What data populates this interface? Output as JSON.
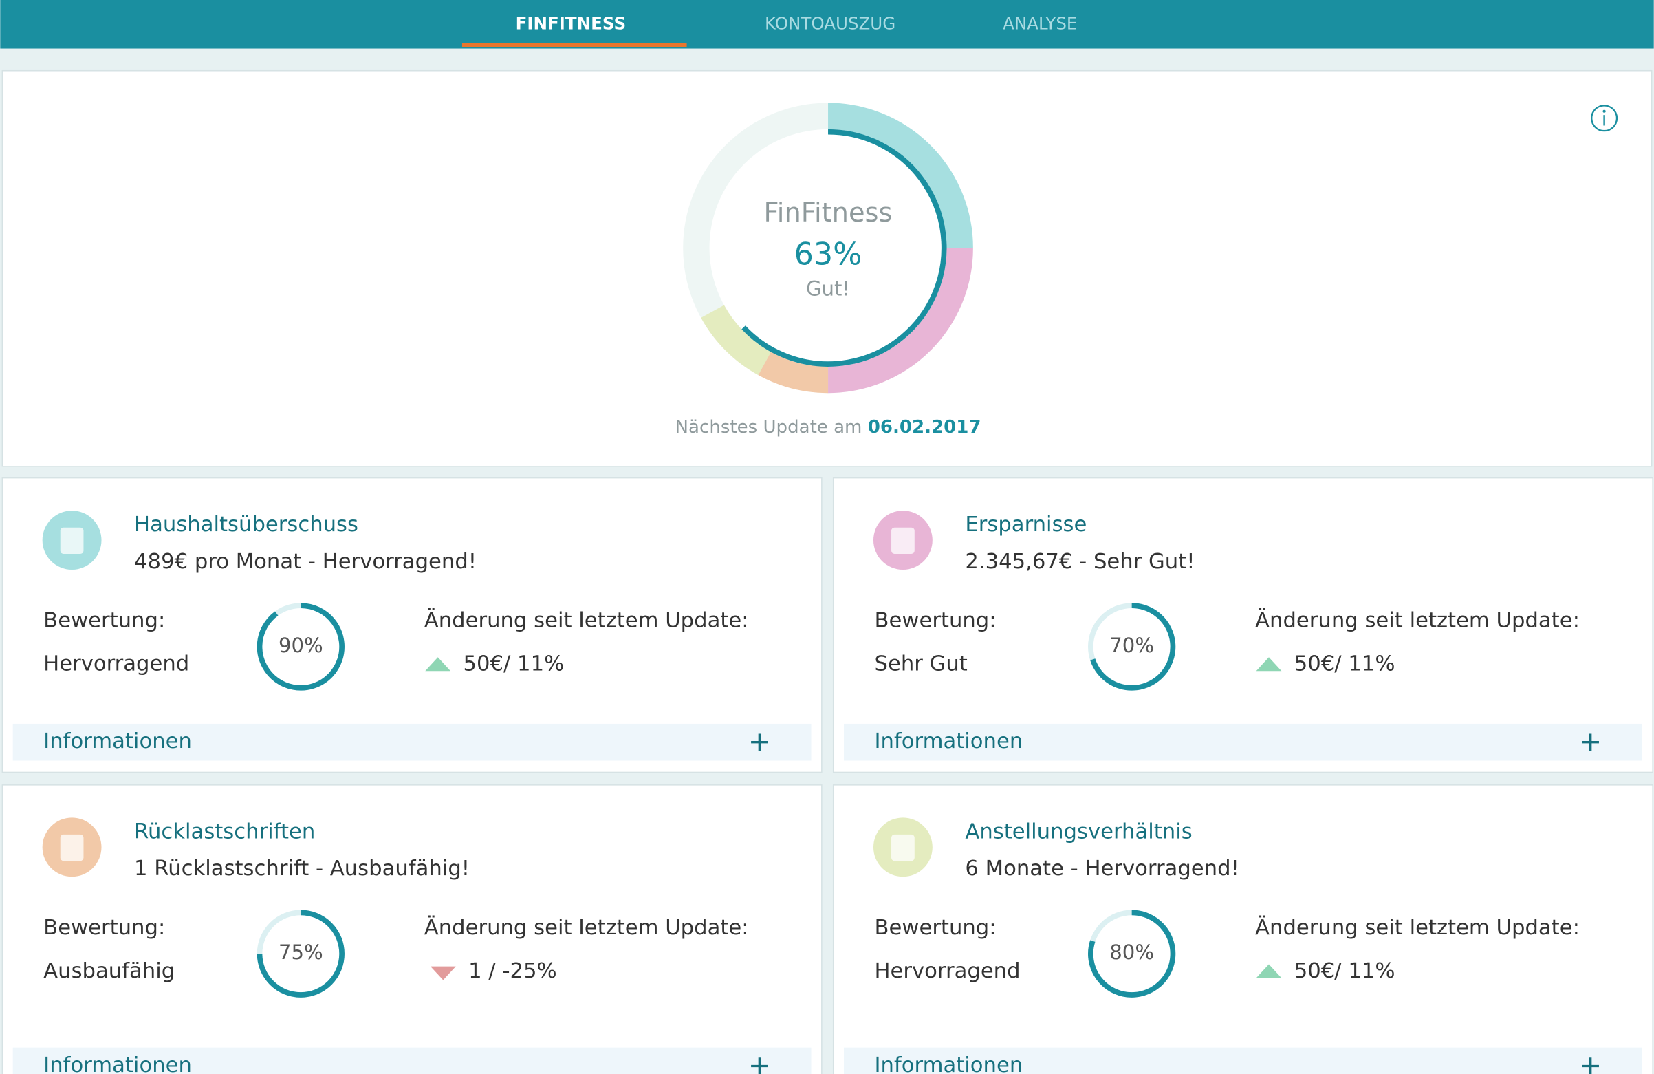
{
  "nav": {
    "tabs": [
      "FINFITNESS",
      "KONTOAUSZUG",
      "ANALYSE"
    ],
    "active": 0
  },
  "overview": {
    "title": "FinFitness",
    "score": 63,
    "score_label": "63%",
    "rating": "Gut!",
    "segments": [
      {
        "color": "#a6dfe0",
        "value": 25
      },
      {
        "color": "#e8b5d6",
        "value": 25
      },
      {
        "color": "#f2c9a8",
        "value": 8
      },
      {
        "color": "#e4ecbf",
        "value": 9
      }
    ],
    "update_text": "Nächstes Update am",
    "update_date": "06.02.2017"
  },
  "cards": [
    {
      "title": "Haushaltsüberschuss",
      "summary": "489€ pro Monat - Hervorragend!",
      "rating_label": "Bewertung:",
      "rating": "Hervorragend",
      "score": 90,
      "score_label": "90%",
      "change_label": "Änderung seit letztem Update:",
      "change": "50€/ 11%",
      "trend": "up",
      "info": "Informationen",
      "icon_color": "#a6dfe0"
    },
    {
      "title": "Ersparnisse",
      "summary": "2.345,67€ - Sehr Gut!",
      "rating_label": "Bewertung:",
      "rating": "Sehr Gut",
      "score": 70,
      "score_label": "70%",
      "change_label": "Änderung seit letztem Update:",
      "change": "50€/ 11%",
      "trend": "up",
      "info": "Informationen",
      "icon_color": "#e8b5d6"
    },
    {
      "title": "Rücklastschriften",
      "summary": "1 Rücklastschrift - Ausbaufähig!",
      "rating_label": "Bewertung:",
      "rating": "Ausbaufähig",
      "score": 75,
      "score_label": "75%",
      "change_label": "Änderung seit letztem Update:",
      "change": "1 / -25%",
      "trend": "down",
      "info": "Informationen",
      "icon_color": "#f2c9a8"
    },
    {
      "title": "Anstellungsverhältnis",
      "summary": "6 Monate - Hervorragend!",
      "rating_label": "Bewertung:",
      "rating": "Hervorragend",
      "score": 80,
      "score_label": "80%",
      "change_label": "Änderung seit letztem Update:",
      "change": "50€/ 11%",
      "trend": "up",
      "info": "Informationen",
      "icon_color": "#e4ecbf"
    }
  ]
}
